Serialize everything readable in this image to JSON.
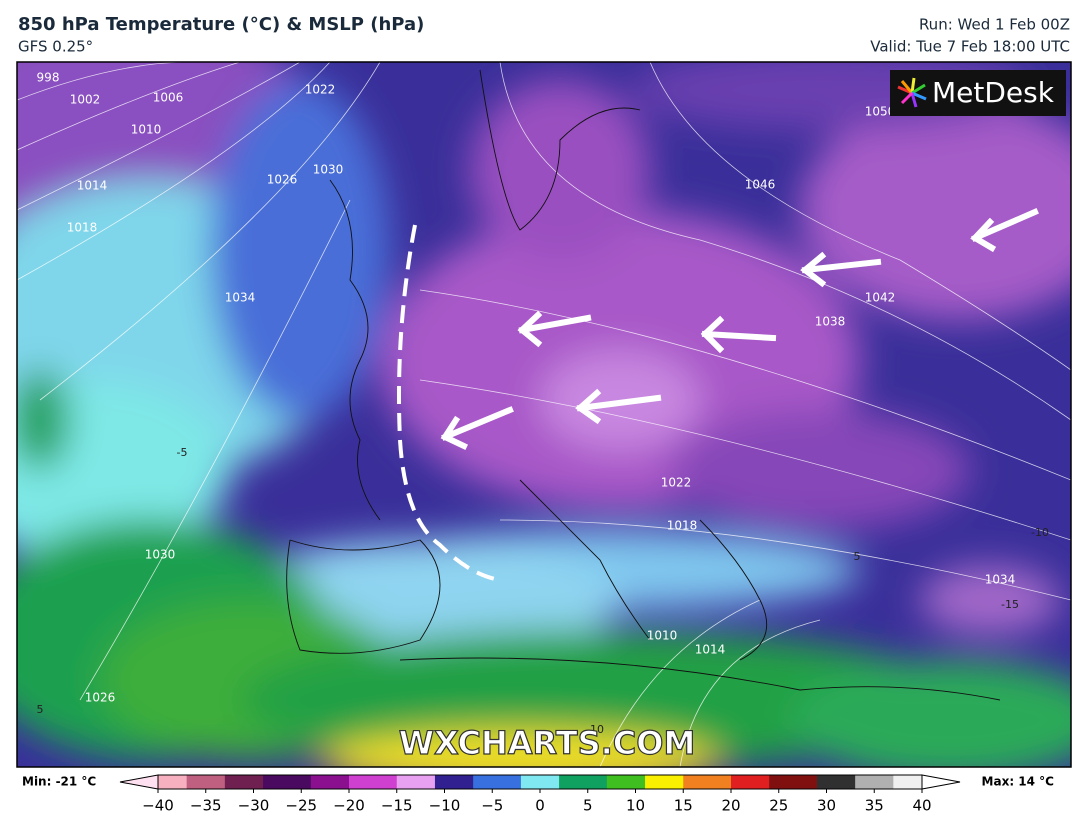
{
  "header": {
    "title": "850 hPa Temperature (°C) & MSLP (hPa)",
    "model": "GFS 0.25°",
    "run": "Run: Wed 1 Feb 00Z",
    "valid": "Valid: Tue 7 Feb 18:00 UTC"
  },
  "map": {
    "logo": "MetDesk",
    "watermark": "WXCHARTS.COM",
    "isobar_labels": [
      "998",
      "1002",
      "1006",
      "1010",
      "1014",
      "1018",
      "1022",
      "1026",
      "1030",
      "1034",
      "1050",
      "1046",
      "1042",
      "1038",
      "1022",
      "1018",
      "1030",
      "1026",
      "1010",
      "1014",
      "1034"
    ],
    "temperature_labels": [
      "-5",
      "5",
      "5",
      "-15",
      "10",
      "-10"
    ]
  },
  "colorbar": {
    "min": "Min: -21 °C",
    "max": "Max: 14 °C",
    "ticks": [
      "−40",
      "−35",
      "−30",
      "−25",
      "−20",
      "−15",
      "−10",
      "−5",
      "0",
      "5",
      "10",
      "15",
      "20",
      "25",
      "30",
      "35",
      "40"
    ]
  }
}
